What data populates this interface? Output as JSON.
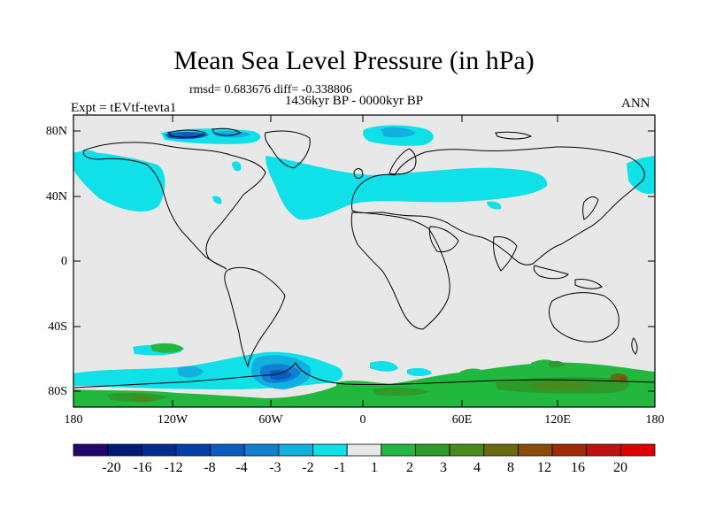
{
  "title": "Mean Sea Level Pressure (in hPa)",
  "stats": "rmsd= 0.683676 diff= -0.338806",
  "period": "1436kyr BP - 0000kyr BP",
  "experiment": "Expt = tEVtf-tevta1",
  "season": "ANN",
  "map": {
    "lat_ticks": [
      "80N",
      "40N",
      "0",
      "40S",
      "80S"
    ],
    "lon_ticks": [
      "180",
      "120W",
      "60W",
      "0",
      "60E",
      "120E",
      "180"
    ],
    "background_color": "#e8e8e8"
  },
  "colorbar": {
    "labels": [
      "-20",
      "-16",
      "-12",
      "-8",
      "-4",
      "-3",
      "-2",
      "-1",
      "1",
      "2",
      "3",
      "4",
      "8",
      "12",
      "16",
      "20"
    ],
    "colors": [
      "#22086a",
      "#001a7a",
      "#002d8f",
      "#0040a8",
      "#0a5cc0",
      "#1080cf",
      "#10b0e0",
      "#10e0e8",
      "#e8e8e8",
      "#22b840",
      "#2e9a2a",
      "#4a8a1a",
      "#6a6a10",
      "#8a4a08",
      "#a02808",
      "#c01010",
      "#e00000"
    ]
  }
}
